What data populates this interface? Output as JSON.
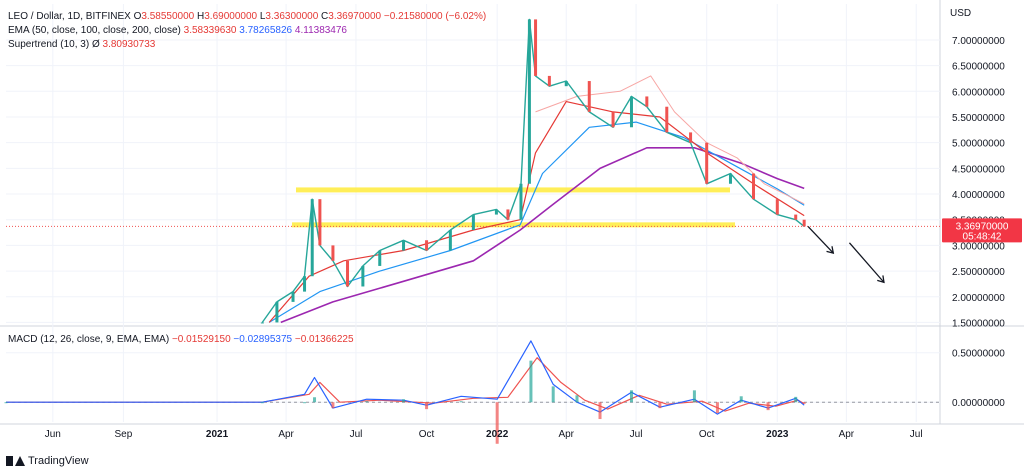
{
  "header": {
    "symbol": "LEO / Dollar, 1D, BITFINEX",
    "ohlc": [
      {
        "k": "O",
        "v": "3.58550000"
      },
      {
        "k": "H",
        "v": "3.69000000"
      },
      {
        "k": "L",
        "v": "3.36300000"
      },
      {
        "k": "C",
        "v": "3.36970000"
      }
    ],
    "change": "−0.21580000 (−6.02%)"
  },
  "ema_legend": {
    "label": "EMA (50, close, 100, close, 200, close)",
    "v50": "3.58339630",
    "v100": "3.78265826",
    "v200": "4.11383476"
  },
  "supertrend_legend": {
    "label": "Supertrend (10, 3)",
    "symbol": "Ø",
    "value": "3.80930733"
  },
  "macd_legend": {
    "label": "MACD (12, 26, close, 9, EMA, EMA)",
    "hist": "−0.01529150",
    "macd": "−0.02895375",
    "signal": "−0.01366225"
  },
  "price_axis": {
    "currency": "USD",
    "ticks": [
      "7.00000000",
      "6.50000000",
      "6.00000000",
      "5.50000000",
      "5.00000000",
      "4.50000000",
      "4.00000000",
      "3.50000000",
      "3.00000000",
      "2.50000000",
      "2.00000000",
      "1.50000000"
    ],
    "current_price": "3.36970000",
    "countdown": "05:48:42"
  },
  "macd_axis": {
    "ticks": [
      "0.50000000",
      "0.00000000"
    ]
  },
  "time_axis": {
    "ticks": [
      "Jun",
      "Sep",
      "2021",
      "Apr",
      "Jul",
      "Oct",
      "2022",
      "Apr",
      "Jul",
      "Oct",
      "2023",
      "Apr",
      "Jul"
    ]
  },
  "colors": {
    "up": "#26a69a",
    "down": "#ef5350",
    "ema50": "#e53935",
    "ema100": "#2196f3",
    "ema200": "#9c27b0",
    "support": "#ffeb3b"
  },
  "chart_data": {
    "type": "line",
    "symbol": "LEO / Dollar",
    "exchange": "BITFINEX",
    "interval": "1D",
    "x_unit": "date",
    "close": [
      {
        "x": "2021-03-01",
        "y": 1.5
      },
      {
        "x": "2021-03-20",
        "y": 1.9
      },
      {
        "x": "2021-04-10",
        "y": 2.1
      },
      {
        "x": "2021-04-25",
        "y": 2.4
      },
      {
        "x": "2021-05-05",
        "y": 3.9
      },
      {
        "x": "2021-05-15",
        "y": 3.0
      },
      {
        "x": "2021-06-01",
        "y": 2.7
      },
      {
        "x": "2021-06-20",
        "y": 2.2
      },
      {
        "x": "2021-07-10",
        "y": 2.6
      },
      {
        "x": "2021-08-01",
        "y": 2.9
      },
      {
        "x": "2021-09-01",
        "y": 3.1
      },
      {
        "x": "2021-10-01",
        "y": 2.9
      },
      {
        "x": "2021-11-01",
        "y": 3.3
      },
      {
        "x": "2021-12-01",
        "y": 3.6
      },
      {
        "x": "2021-12-31",
        "y": 3.7
      },
      {
        "x": "2022-01-15",
        "y": 3.5
      },
      {
        "x": "2022-02-01",
        "y": 4.2
      },
      {
        "x": "2022-02-12",
        "y": 7.4
      },
      {
        "x": "2022-02-20",
        "y": 6.3
      },
      {
        "x": "2022-03-10",
        "y": 6.1
      },
      {
        "x": "2022-04-01",
        "y": 6.2
      },
      {
        "x": "2022-05-01",
        "y": 5.6
      },
      {
        "x": "2022-06-01",
        "y": 5.3
      },
      {
        "x": "2022-06-25",
        "y": 5.9
      },
      {
        "x": "2022-07-15",
        "y": 5.7
      },
      {
        "x": "2022-08-10",
        "y": 5.2
      },
      {
        "x": "2022-09-10",
        "y": 5.0
      },
      {
        "x": "2022-10-01",
        "y": 4.2
      },
      {
        "x": "2022-11-01",
        "y": 4.4
      },
      {
        "x": "2022-12-01",
        "y": 3.9
      },
      {
        "x": "2023-01-01",
        "y": 3.6
      },
      {
        "x": "2023-01-25",
        "y": 3.5
      },
      {
        "x": "2023-02-05",
        "y": 3.37
      }
    ],
    "ema50": [
      {
        "x": "2021-03-10",
        "y": 1.5
      },
      {
        "x": "2021-05-01",
        "y": 2.4
      },
      {
        "x": "2021-06-15",
        "y": 2.7
      },
      {
        "x": "2021-09-01",
        "y": 2.9
      },
      {
        "x": "2021-12-01",
        "y": 3.3
      },
      {
        "x": "2022-01-31",
        "y": 3.5
      },
      {
        "x": "2022-02-20",
        "y": 4.8
      },
      {
        "x": "2022-04-01",
        "y": 5.8
      },
      {
        "x": "2022-06-01",
        "y": 5.6
      },
      {
        "x": "2022-08-01",
        "y": 5.5
      },
      {
        "x": "2022-10-01",
        "y": 4.8
      },
      {
        "x": "2022-12-01",
        "y": 4.2
      },
      {
        "x": "2023-02-05",
        "y": 3.58
      }
    ],
    "ema100": [
      {
        "x": "2021-03-10",
        "y": 1.5
      },
      {
        "x": "2021-05-15",
        "y": 2.1
      },
      {
        "x": "2021-08-01",
        "y": 2.5
      },
      {
        "x": "2021-11-01",
        "y": 2.9
      },
      {
        "x": "2022-01-31",
        "y": 3.4
      },
      {
        "x": "2022-03-01",
        "y": 4.4
      },
      {
        "x": "2022-05-01",
        "y": 5.3
      },
      {
        "x": "2022-07-01",
        "y": 5.4
      },
      {
        "x": "2022-09-01",
        "y": 5.1
      },
      {
        "x": "2022-11-01",
        "y": 4.6
      },
      {
        "x": "2023-01-01",
        "y": 4.1
      },
      {
        "x": "2023-02-05",
        "y": 3.78
      }
    ],
    "ema200": [
      {
        "x": "2021-03-25",
        "y": 1.5
      },
      {
        "x": "2021-06-01",
        "y": 1.9
      },
      {
        "x": "2021-09-01",
        "y": 2.3
      },
      {
        "x": "2021-12-01",
        "y": 2.7
      },
      {
        "x": "2022-01-31",
        "y": 3.3
      },
      {
        "x": "2022-03-15",
        "y": 3.8
      },
      {
        "x": "2022-05-15",
        "y": 4.5
      },
      {
        "x": "2022-07-15",
        "y": 4.9
      },
      {
        "x": "2022-09-15",
        "y": 4.9
      },
      {
        "x": "2022-11-15",
        "y": 4.6
      },
      {
        "x": "2023-01-01",
        "y": 4.3
      },
      {
        "x": "2023-02-05",
        "y": 4.11
      }
    ],
    "supertrend": [
      {
        "x": "2022-02-20",
        "y": 5.6
      },
      {
        "x": "2022-04-15",
        "y": 5.9
      },
      {
        "x": "2022-06-10",
        "y": 6.0
      },
      {
        "x": "2022-07-20",
        "y": 6.3
      },
      {
        "x": "2022-08-20",
        "y": 5.6
      },
      {
        "x": "2022-10-01",
        "y": 5.0
      },
      {
        "x": "2022-11-10",
        "y": 4.7
      },
      {
        "x": "2022-12-15",
        "y": 4.2
      },
      {
        "x": "2023-02-05",
        "y": 3.81
      }
    ],
    "horizontal_levels": [
      4.08,
      3.4
    ],
    "projection": [
      {
        "x": "2023-02-10",
        "y": 3.37
      },
      {
        "x": "2023-03-15",
        "y": 2.85
      },
      {
        "x": "2023-04-05",
        "y": 3.05
      },
      {
        "x": "2023-05-20",
        "y": 2.28
      }
    ],
    "macd": [
      {
        "x": "2020-04-01",
        "y": 0.0
      },
      {
        "x": "2021-03-01",
        "y": 0.0
      },
      {
        "x": "2021-04-25",
        "y": 0.08
      },
      {
        "x": "2021-05-08",
        "y": 0.25
      },
      {
        "x": "2021-06-01",
        "y": -0.06
      },
      {
        "x": "2021-07-15",
        "y": 0.03
      },
      {
        "x": "2021-09-01",
        "y": 0.02
      },
      {
        "x": "2021-10-01",
        "y": -0.03
      },
      {
        "x": "2021-11-15",
        "y": 0.06
      },
      {
        "x": "2022-01-01",
        "y": 0.03
      },
      {
        "x": "2022-02-14",
        "y": 0.62
      },
      {
        "x": "2022-03-15",
        "y": 0.18
      },
      {
        "x": "2022-04-15",
        "y": 0.0
      },
      {
        "x": "2022-05-15",
        "y": -0.1
      },
      {
        "x": "2022-06-25",
        "y": 0.1
      },
      {
        "x": "2022-08-01",
        "y": -0.05
      },
      {
        "x": "2022-09-15",
        "y": 0.03
      },
      {
        "x": "2022-10-15",
        "y": -0.12
      },
      {
        "x": "2022-11-15",
        "y": 0.02
      },
      {
        "x": "2022-12-20",
        "y": -0.06
      },
      {
        "x": "2023-01-25",
        "y": 0.04
      },
      {
        "x": "2023-02-05",
        "y": -0.03
      }
    ],
    "signal": [
      {
        "x": "2020-04-01",
        "y": 0.0
      },
      {
        "x": "2021-03-01",
        "y": 0.0
      },
      {
        "x": "2021-05-01",
        "y": 0.08
      },
      {
        "x": "2021-05-15",
        "y": 0.2
      },
      {
        "x": "2021-06-10",
        "y": 0.0
      },
      {
        "x": "2021-08-01",
        "y": 0.02
      },
      {
        "x": "2021-10-10",
        "y": -0.01
      },
      {
        "x": "2021-12-01",
        "y": 0.04
      },
      {
        "x": "2022-01-15",
        "y": 0.05
      },
      {
        "x": "2022-02-22",
        "y": 0.45
      },
      {
        "x": "2022-03-25",
        "y": 0.2
      },
      {
        "x": "2022-04-25",
        "y": 0.02
      },
      {
        "x": "2022-05-25",
        "y": -0.07
      },
      {
        "x": "2022-07-05",
        "y": 0.07
      },
      {
        "x": "2022-08-10",
        "y": -0.02
      },
      {
        "x": "2022-09-25",
        "y": 0.01
      },
      {
        "x": "2022-10-25",
        "y": -0.09
      },
      {
        "x": "2022-11-25",
        "y": -0.01
      },
      {
        "x": "2022-12-30",
        "y": -0.04
      },
      {
        "x": "2023-01-28",
        "y": 0.02
      },
      {
        "x": "2023-02-05",
        "y": -0.014
      }
    ],
    "price_ylim": [
      1.45,
      7.7
    ],
    "macd_ylim": [
      -0.2,
      0.75
    ],
    "xlim": [
      "2020-04-01",
      "2023-08-01"
    ],
    "grid": true
  },
  "brand": {
    "name": "TradingView"
  }
}
